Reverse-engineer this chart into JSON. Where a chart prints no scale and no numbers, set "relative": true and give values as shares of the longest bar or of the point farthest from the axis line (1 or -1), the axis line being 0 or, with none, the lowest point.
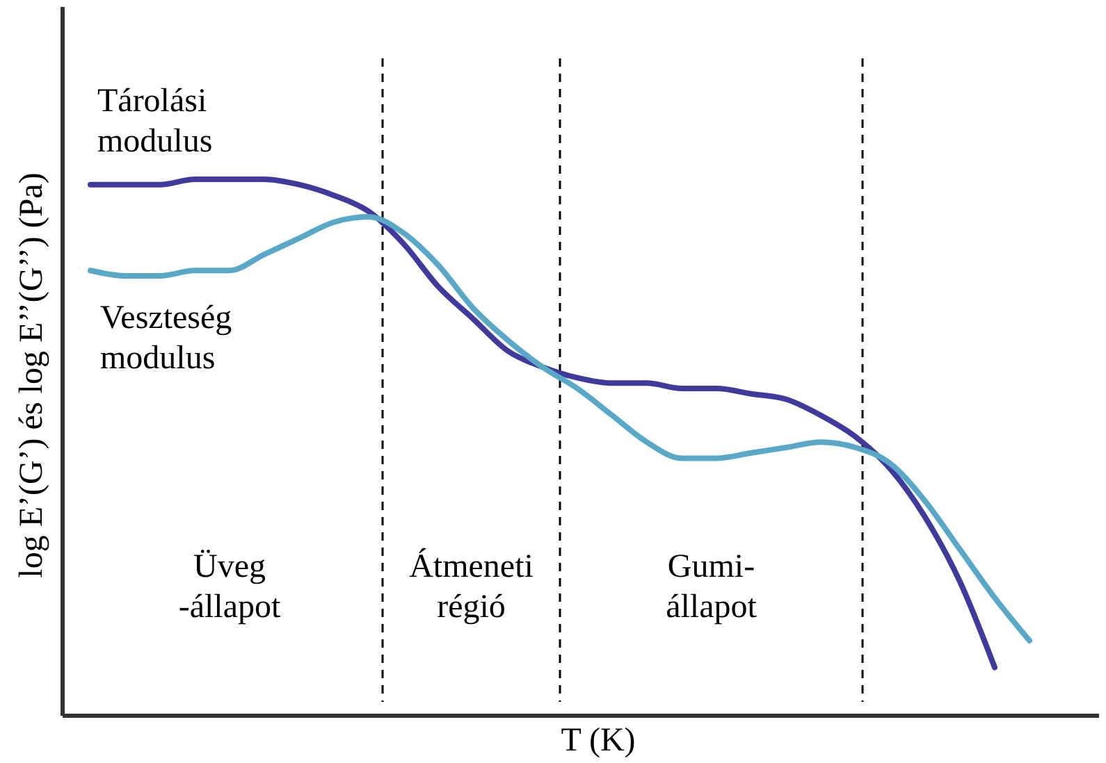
{
  "chart_data": {
    "type": "line",
    "relative": true,
    "xlabel": "T (K)",
    "ylabel": "log E’(G’) és log E’’(G’’) (Pa)",
    "categories": [
      null,
      null,
      null,
      null,
      null,
      null,
      null,
      null,
      null,
      null,
      null,
      null,
      null,
      null,
      null,
      null,
      null,
      null,
      null,
      null,
      null,
      null,
      null,
      null,
      null,
      null,
      null,
      null
    ],
    "series": [
      {
        "name": "Tárolási\nmodulus",
        "color": "#3f3a9c",
        "values": [
          0.99,
          0.99,
          0.99,
          1,
          1,
          1,
          0.99,
          0.97,
          0.94,
          0.88,
          0.8,
          0.74,
          0.68,
          0.65,
          0.63,
          0.62,
          0.62,
          0.61,
          0.61,
          0.6,
          0.59,
          0.56,
          0.52,
          0.46,
          0.37,
          0.25,
          0.09,
          null
        ]
      },
      {
        "name": "Veszteség\nmodulus",
        "color": "#5aa8c8",
        "values": [
          0.83,
          0.82,
          0.82,
          0.83,
          0.83,
          0.86,
          0.89,
          0.92,
          0.93,
          0.9,
          0.84,
          0.76,
          0.7,
          0.65,
          0.61,
          0.56,
          0.51,
          0.48,
          0.48,
          0.49,
          0.5,
          0.51,
          0.5,
          0.47,
          0.4,
          0.31,
          0.22,
          0.14
        ]
      }
    ],
    "annotations": [
      "Üveg\n-állapot",
      "Átmeneti\nrégió",
      "Gumi-\nállapot"
    ],
    "legend": false,
    "marker": "none",
    "line_style": "solid"
  }
}
